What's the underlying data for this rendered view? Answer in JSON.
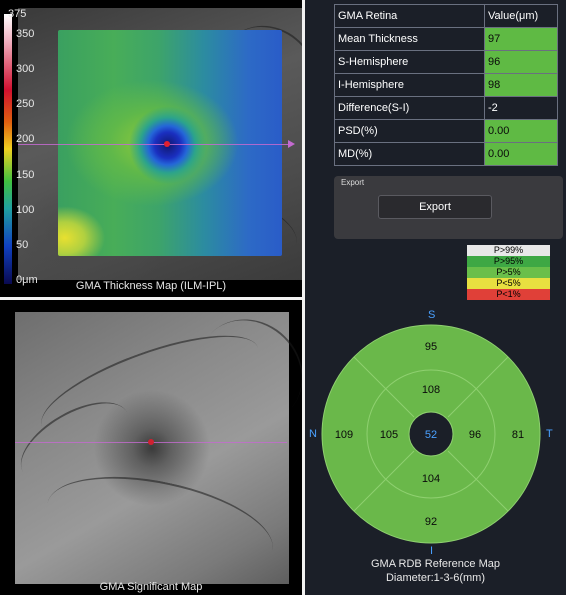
{
  "thickness_panel": {
    "caption": "GMA Thickness Map (ILM-IPL)",
    "scale_ticks": [
      "375",
      "350",
      "300",
      "250",
      "200",
      "150",
      "100",
      "50",
      "0μm"
    ]
  },
  "significant_panel": {
    "caption": "GMA Significant Map"
  },
  "table": {
    "header": {
      "label": "GMA Retina",
      "value": "Value(μm)"
    },
    "rows": [
      {
        "label": "Mean Thickness",
        "value": "97",
        "status": "green"
      },
      {
        "label": "S-Hemisphere",
        "value": "96",
        "status": "green"
      },
      {
        "label": "I-Hemisphere",
        "value": "98",
        "status": "green"
      },
      {
        "label": "Difference(S-I)",
        "value": "-2",
        "status": "none"
      },
      {
        "label": "PSD(%)",
        "value": "0.00",
        "status": "green"
      },
      {
        "label": "MD(%)",
        "value": "0.00",
        "status": "green"
      }
    ]
  },
  "export": {
    "title": "Export",
    "button_label": "Export"
  },
  "legend": [
    {
      "label": "P>99%",
      "color": "#e8e8e8"
    },
    {
      "label": "P>95%",
      "color": "#3ea844"
    },
    {
      "label": "P>5%",
      "color": "#6abf4a"
    },
    {
      "label": "P<5%",
      "color": "#e8e040"
    },
    {
      "label": "P<1%",
      "color": "#e04038"
    }
  ],
  "rdb_map": {
    "directions": {
      "top": "S",
      "bottom": "I",
      "left": "N",
      "right": "T"
    },
    "values": {
      "outer_superior": "95",
      "inner_superior": "108",
      "outer_nasal": "109",
      "inner_nasal": "105",
      "center": "52",
      "inner_temporal": "96",
      "outer_temporal": "81",
      "inner_inferior": "104",
      "outer_inferior": "92"
    },
    "caption_title": "GMA RDB Reference Map",
    "caption_diameter": "Diameter:1-3-6(mm)",
    "colors": {
      "fill": "#6ab84a",
      "line": "#8fd070",
      "center": "#1b1f28",
      "center_text": "#4aa0ff"
    }
  },
  "colors": {
    "accent_line": "#c46ad0",
    "table_green": "#5fba44"
  }
}
